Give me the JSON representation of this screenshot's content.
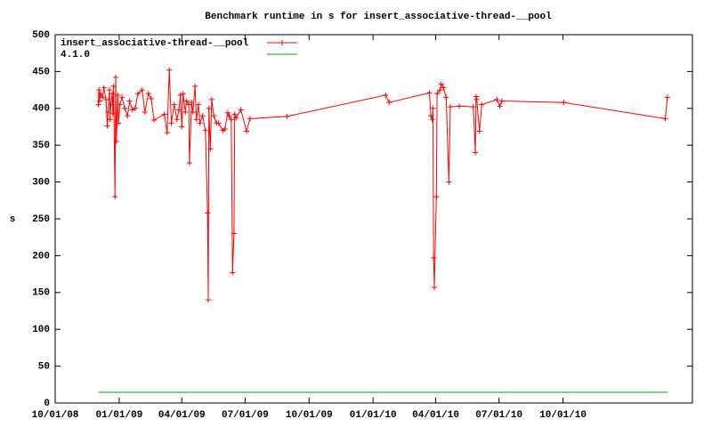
{
  "chart_data": {
    "type": "line",
    "title": "Benchmark runtime in s for insert_associative-thread-__pool",
    "y_label": "s",
    "xlim": [
      "2008-10-01",
      "2011-04-05"
    ],
    "xticks": [
      {
        "value": "2008-10-01",
        "label": "10/01/08"
      },
      {
        "value": "2009-01-01",
        "label": "01/01/09"
      },
      {
        "value": "2009-04-01",
        "label": "04/01/09"
      },
      {
        "value": "2009-07-01",
        "label": "07/01/09"
      },
      {
        "value": "2009-10-01",
        "label": "10/01/09"
      },
      {
        "value": "2010-01-01",
        "label": "01/01/10"
      },
      {
        "value": "2010-04-01",
        "label": "04/01/10"
      },
      {
        "value": "2010-07-01",
        "label": "07/01/10"
      },
      {
        "value": "2010-10-01",
        "label": "10/01/10"
      }
    ],
    "ylim": [
      0,
      500
    ],
    "yticks": [
      0,
      50,
      100,
      150,
      200,
      250,
      300,
      350,
      400,
      450,
      500
    ],
    "grid": false,
    "legend": "top-left",
    "series": [
      {
        "name": "insert_associative-thread-__pool",
        "color": "#ff0000",
        "markers": true,
        "x": [
          "2008-12-02",
          "2008-12-03",
          "2008-12-04",
          "2008-12-05",
          "2008-12-08",
          "2008-12-10",
          "2008-12-13",
          "2008-12-15",
          "2008-12-16",
          "2008-12-18",
          "2008-12-19",
          "2008-12-20",
          "2008-12-22",
          "2008-12-23",
          "2008-12-24",
          "2008-12-26",
          "2008-12-27",
          "2008-12-28",
          "2008-12-30",
          "2008-12-31",
          "2009-01-02",
          "2009-01-05",
          "2009-01-09",
          "2009-01-13",
          "2009-01-16",
          "2009-01-20",
          "2009-01-24",
          "2009-01-28",
          "2009-02-03",
          "2009-02-07",
          "2009-02-12",
          "2009-02-16",
          "2009-02-20",
          "2009-03-07",
          "2009-03-11",
          "2009-03-14",
          "2009-03-17",
          "2009-03-21",
          "2009-03-25",
          "2009-03-28",
          "2009-03-30",
          "2009-04-01",
          "2009-04-03",
          "2009-04-06",
          "2009-04-08",
          "2009-04-11",
          "2009-04-12",
          "2009-04-15",
          "2009-04-17",
          "2009-04-20",
          "2009-04-22",
          "2009-04-25",
          "2009-04-27",
          "2009-05-01",
          "2009-05-05",
          "2009-05-08",
          "2009-05-09",
          "2009-05-10",
          "2009-05-12",
          "2009-05-14",
          "2009-05-17",
          "2009-05-21",
          "2009-05-24",
          "2009-05-30",
          "2009-06-02",
          "2009-06-06",
          "2009-06-08",
          "2009-06-11",
          "2009-06-13",
          "2009-06-15",
          "2009-06-16",
          "2009-06-18",
          "2009-06-25",
          "2009-07-03",
          "2009-07-08",
          "2009-08-30",
          "2010-01-19",
          "2010-01-24",
          "2010-03-23",
          "2010-03-25",
          "2010-03-27",
          "2010-03-28",
          "2010-03-29",
          "2010-03-30",
          "2010-04-02",
          "2010-04-03",
          "2010-04-07",
          "2010-04-09",
          "2010-04-12",
          "2010-04-16",
          "2010-04-20",
          "2010-04-22",
          "2010-05-05",
          "2010-05-25",
          "2010-05-28",
          "2010-05-29",
          "2010-05-30",
          "2010-06-03",
          "2010-06-06",
          "2010-06-28",
          "2010-07-02",
          "2010-07-05",
          "2010-10-02",
          "2011-02-25",
          "2011-02-28"
        ],
        "values": [
          405,
          425,
          410,
          420,
          415,
          428,
          412,
          376,
          395,
          425,
          385,
          405,
          420,
          393,
          430,
          280,
          442,
          355,
          418,
          380,
          405,
          415,
          400,
          390,
          410,
          398,
          400,
          420,
          425,
          395,
          420,
          413,
          384,
          392,
          367,
          452,
          380,
          405,
          385,
          398,
          418,
          375,
          420,
          395,
          410,
          405,
          326,
          408,
          395,
          430,
          385,
          405,
          380,
          390,
          370,
          258,
          140,
          400,
          345,
          412,
          390,
          380,
          380,
          370,
          372,
          394,
          390,
          385,
          177,
          230,
          392,
          387,
          398,
          369,
          386,
          389,
          418,
          408,
          421,
          390,
          385,
          400,
          197,
          157,
          280,
          420,
          425,
          433,
          428,
          415,
          300,
          402,
          403,
          402,
          340,
          416,
          412,
          369,
          405,
          412,
          403,
          410,
          408,
          386,
          415
        ]
      },
      {
        "name": "4.1.0",
        "color": "#00aa00",
        "markers": false,
        "x": [
          "2008-12-02",
          "2011-02-28"
        ],
        "values": [
          14.5,
          14.5
        ]
      }
    ]
  }
}
